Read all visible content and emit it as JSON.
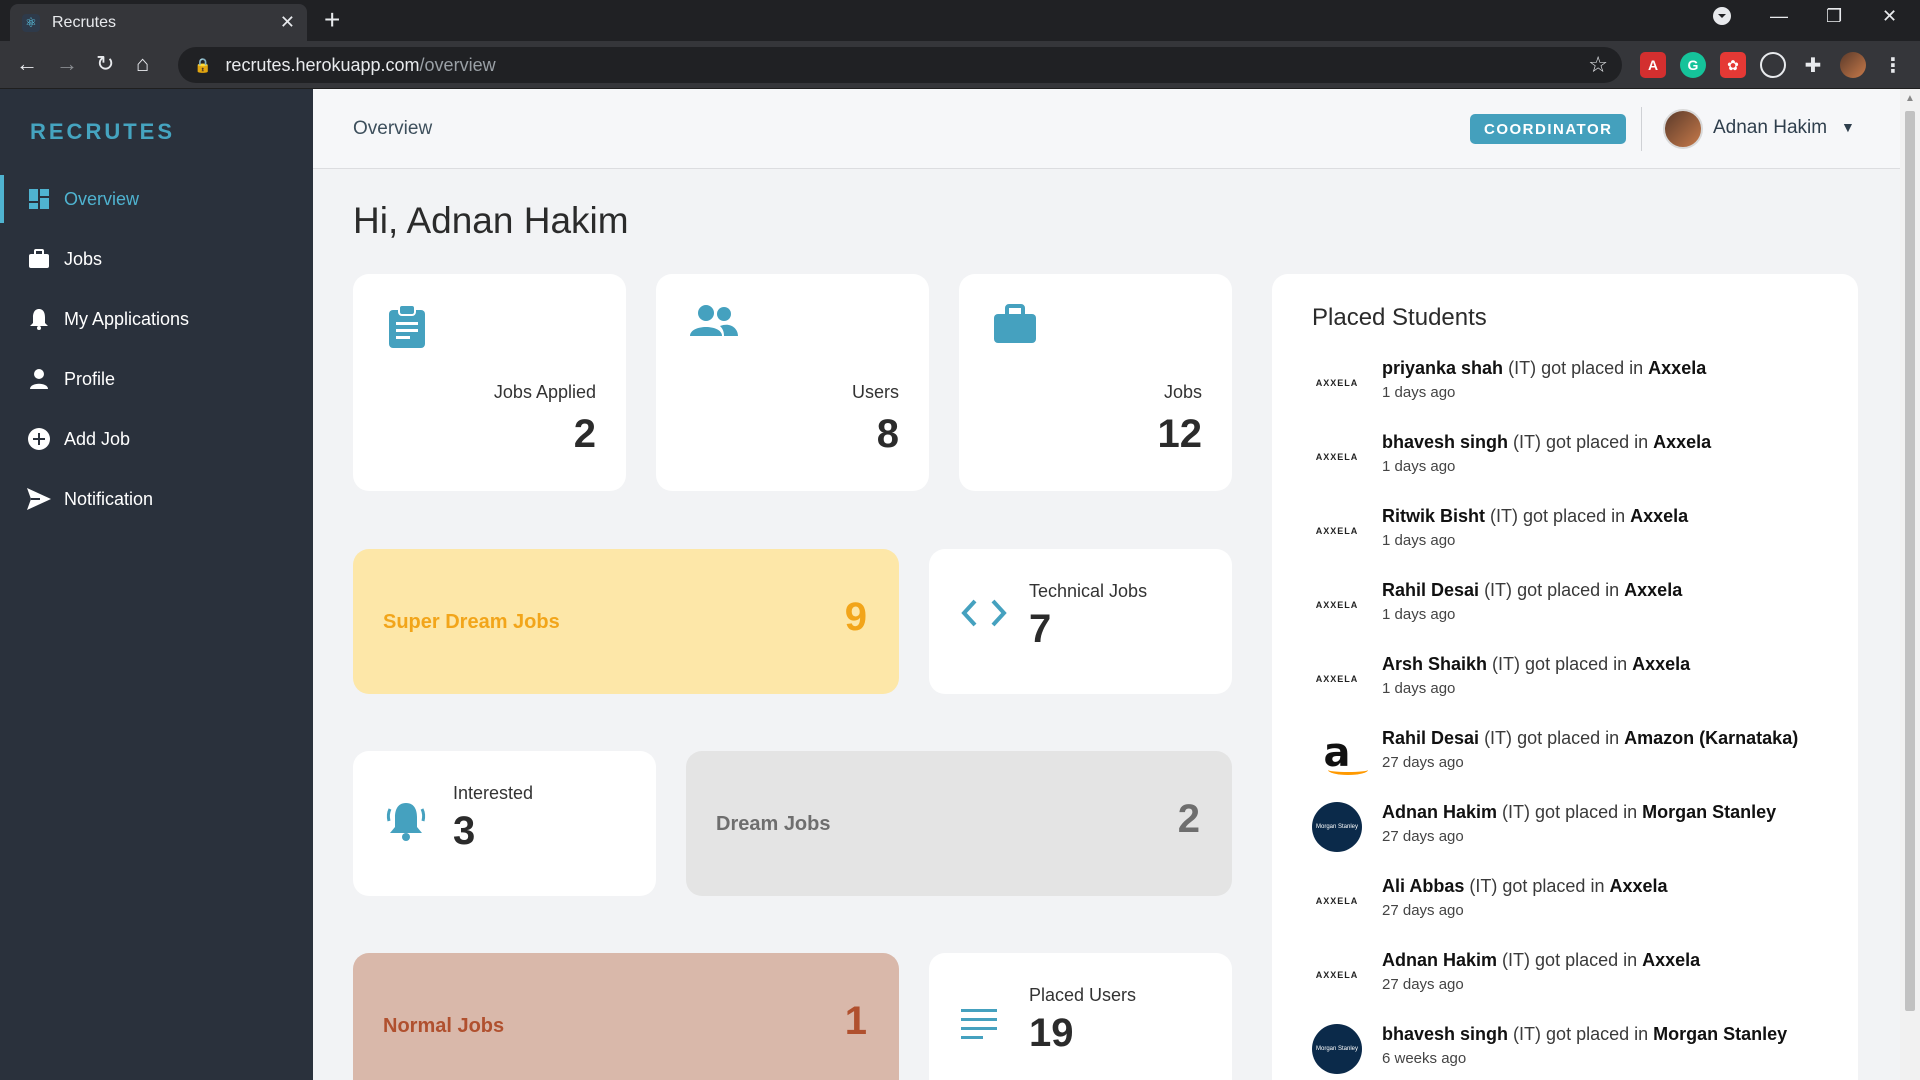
{
  "browser": {
    "tab_title": "Recrutes",
    "url_host": "recrutes.herokuapp.com",
    "url_path": "/overview"
  },
  "sidebar": {
    "brand": "RECRUTES",
    "items": [
      {
        "label": "Overview",
        "icon": "dashboard-icon",
        "active": true
      },
      {
        "label": "Jobs",
        "icon": "briefcase-icon",
        "active": false
      },
      {
        "label": "My Applications",
        "icon": "bell-icon",
        "active": false
      },
      {
        "label": "Profile",
        "icon": "user-icon",
        "active": false
      },
      {
        "label": "Add Job",
        "icon": "plus-circle-icon",
        "active": false
      },
      {
        "label": "Notification",
        "icon": "send-icon",
        "active": false
      }
    ]
  },
  "header": {
    "breadcrumb": "Overview",
    "role": "COORDINATOR",
    "user_name": "Adnan Hakim"
  },
  "greeting": "Hi, Adnan Hakim",
  "stats": [
    {
      "label": "Jobs Applied",
      "value": "2",
      "icon": "clipboard-icon"
    },
    {
      "label": "Users",
      "value": "8",
      "icon": "users-icon"
    },
    {
      "label": "Jobs",
      "value": "12",
      "icon": "briefcase-icon"
    }
  ],
  "categories": {
    "super_dream": {
      "label": "Super Dream Jobs",
      "value": "9",
      "bg": "#fde7a8",
      "color": "#f2a51a"
    },
    "dream": {
      "label": "Dream Jobs",
      "value": "2",
      "bg": "#e4e4e4",
      "color": "#6e6e6e"
    },
    "normal": {
      "label": "Normal Jobs",
      "value": "1",
      "bg": "#d9b8aa",
      "color": "#b0502e"
    }
  },
  "mini": {
    "technical": {
      "label": "Technical Jobs",
      "value": "7",
      "icon": "code-icon"
    },
    "interested": {
      "label": "Interested",
      "value": "3",
      "icon": "bell-icon"
    },
    "placed_users": {
      "label": "Placed Users",
      "value": "19",
      "icon": "list-icon"
    }
  },
  "placed": {
    "title": "Placed Students",
    "connector": "got placed in",
    "items": [
      {
        "name": "priyanka shah",
        "dept": "(IT)",
        "company": "Axxela",
        "time": "1 days ago",
        "logo": "axxela"
      },
      {
        "name": "bhavesh singh",
        "dept": "(IT)",
        "company": "Axxela",
        "time": "1 days ago",
        "logo": "axxela"
      },
      {
        "name": "Ritwik Bisht",
        "dept": "(IT)",
        "company": "Axxela",
        "time": "1 days ago",
        "logo": "axxela"
      },
      {
        "name": "Rahil Desai",
        "dept": "(IT)",
        "company": "Axxela",
        "time": "1 days ago",
        "logo": "axxela"
      },
      {
        "name": "Arsh Shaikh",
        "dept": "(IT)",
        "company": "Axxela",
        "time": "1 days ago",
        "logo": "axxela"
      },
      {
        "name": "Rahil Desai",
        "dept": "(IT)",
        "company": "Amazon (Karnataka)",
        "time": "27 days ago",
        "logo": "amazon"
      },
      {
        "name": "Adnan Hakim",
        "dept": "(IT)",
        "company": "Morgan Stanley",
        "time": "27 days ago",
        "logo": "morgan"
      },
      {
        "name": "Ali Abbas",
        "dept": "(IT)",
        "company": "Axxela",
        "time": "27 days ago",
        "logo": "axxela"
      },
      {
        "name": "Adnan Hakim",
        "dept": "(IT)",
        "company": "Axxela",
        "time": "27 days ago",
        "logo": "axxela"
      },
      {
        "name": "bhavesh singh",
        "dept": "(IT)",
        "company": "Morgan Stanley",
        "time": "6 weeks ago",
        "logo": "morgan"
      }
    ]
  },
  "logos": {
    "axxela": "AXXELA",
    "amazon": "a",
    "morgan": "Morgan Stanley"
  }
}
